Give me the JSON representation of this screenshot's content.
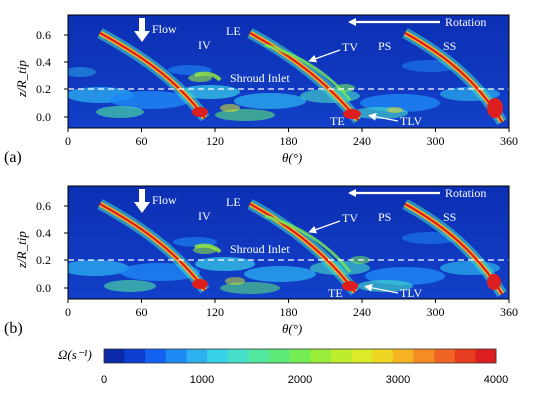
{
  "chart_data": [
    {
      "type": "heatmap",
      "panel_label": "(a)",
      "xlabel": "θ(°)",
      "ylabel": "z/R_tip",
      "xlim": [
        0,
        360
      ],
      "ylim": [
        -0.08,
        0.7
      ],
      "x_ticks": [
        "0",
        "60",
        "120",
        "180",
        "240",
        "300",
        "360"
      ],
      "y_ticks": [
        "0.0",
        "0.2",
        "0.4",
        "0.6"
      ],
      "shroud_inlet_z": 0.2,
      "annotations": {
        "flow": "Flow",
        "rotation": "Rotation",
        "IV": "IV",
        "LE": "LE",
        "TV": "TV",
        "PS": "PS",
        "SS": "SS",
        "shroud_inlet": "Shroud Inlet",
        "TE": "TE",
        "TLV": "TLV"
      }
    },
    {
      "type": "heatmap",
      "panel_label": "(b)",
      "xlabel": "θ(°)",
      "ylabel": "z/R_tip",
      "xlim": [
        0,
        360
      ],
      "ylim": [
        -0.08,
        0.7
      ],
      "x_ticks": [
        "0",
        "60",
        "120",
        "180",
        "240",
        "300",
        "360"
      ],
      "y_ticks": [
        "0.0",
        "0.2",
        "0.4",
        "0.6"
      ],
      "shroud_inlet_z": 0.2,
      "annotations": {
        "flow": "Flow",
        "rotation": "Rotation",
        "IV": "IV",
        "LE": "LE",
        "TV": "TV",
        "PS": "PS",
        "SS": "SS",
        "shroud_inlet": "Shroud Inlet",
        "TE": "TE",
        "TLV": "TLV"
      }
    }
  ],
  "colorbar": {
    "label": "Ω(s⁻¹)",
    "min": 0,
    "max": 4000,
    "ticks": [
      "0",
      "1000",
      "2000",
      "3000",
      "4000"
    ],
    "colors": [
      "#0a2aa8",
      "#0d3ed0",
      "#1460f0",
      "#1e88f5",
      "#2cb0f0",
      "#3ad2e8",
      "#46e0c8",
      "#52e8a0",
      "#5ee878",
      "#74ec54",
      "#98ee3a",
      "#bcee2e",
      "#dcea28",
      "#f0d624",
      "#f6b424",
      "#f68c24",
      "#f06424",
      "#e63c22",
      "#dc1e1e"
    ]
  }
}
